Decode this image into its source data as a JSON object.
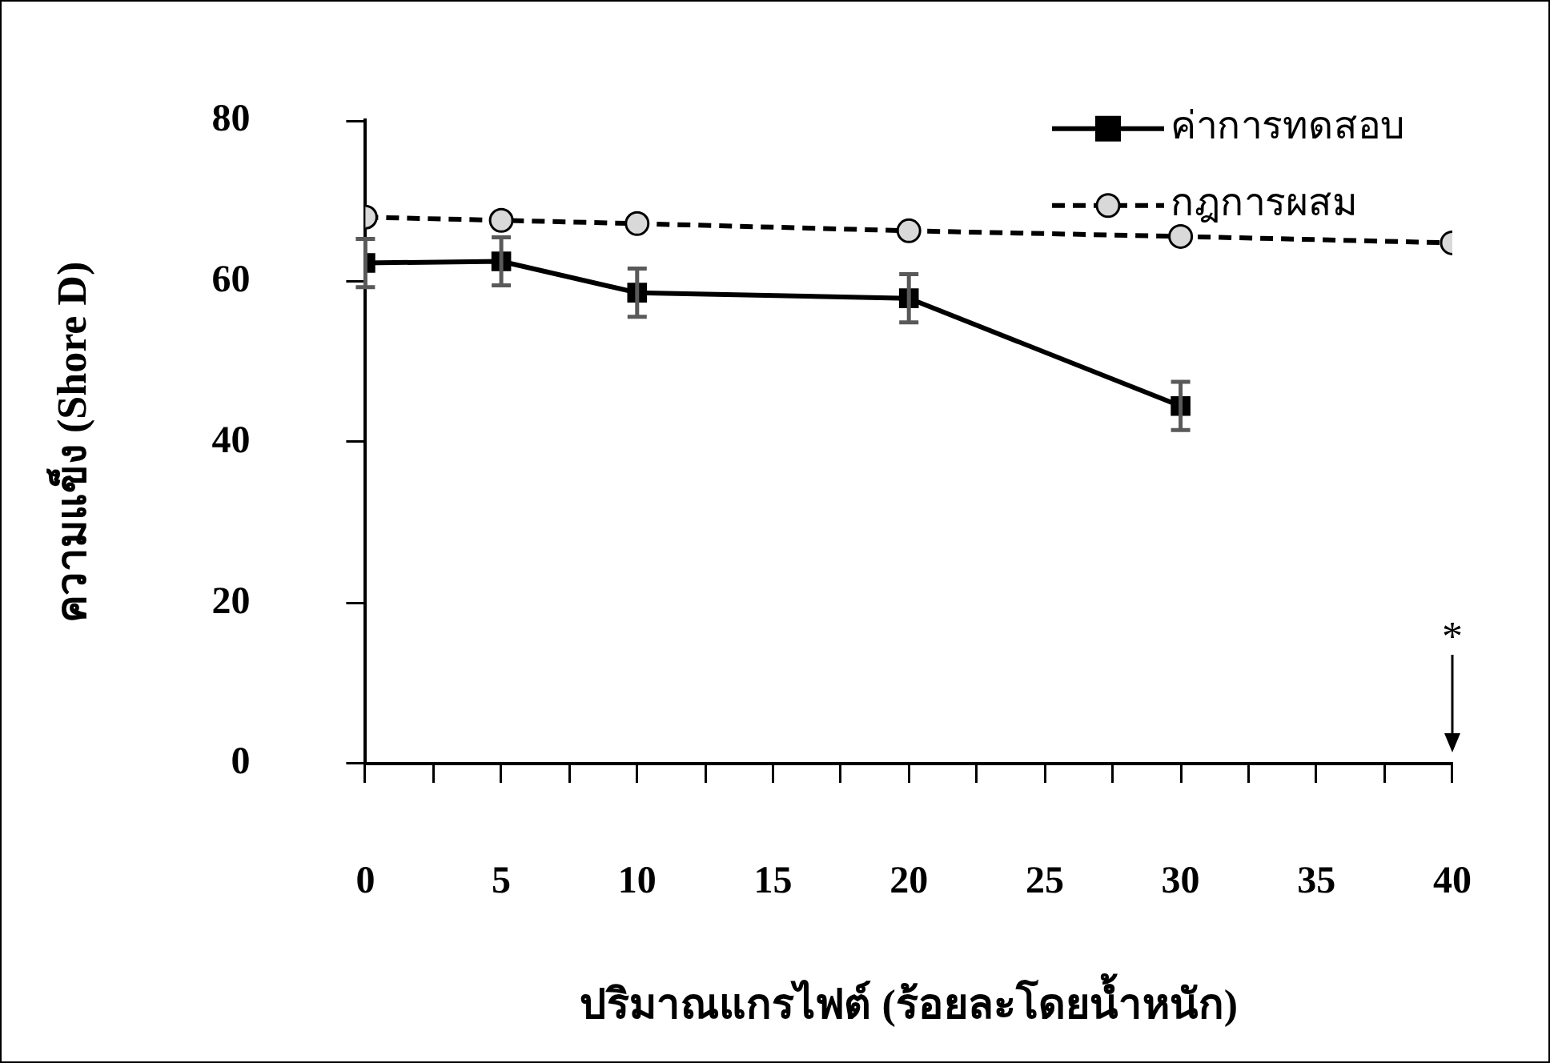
{
  "chart_data": {
    "type": "line",
    "xlabel": "ปริมาณแกรไฟต์ (ร้อยละโดยน้ำหนัก)",
    "ylabel": "ความแข็ง (Shore D)",
    "xlim": [
      0,
      40
    ],
    "xticks": [
      0,
      {
        "value": 2.5,
        "label": null
      },
      5,
      {
        "value": 7.5,
        "label": null
      },
      10,
      {
        "value": 12.5,
        "label": null
      },
      15,
      {
        "value": 17.5,
        "label": null
      },
      20,
      {
        "value": 22.5,
        "label": null
      },
      25,
      {
        "value": 27.5,
        "label": null
      },
      30,
      {
        "value": 32.5,
        "label": null
      },
      35,
      {
        "value": 37.5,
        "label": null
      },
      40
    ],
    "ylim": [
      0,
      80
    ],
    "yticks": [
      0,
      20,
      40,
      60,
      80
    ],
    "grid": false,
    "legend": "top right",
    "annotations": [
      "*"
    ],
    "series": [
      {
        "name": "ค่าการทดสอบ",
        "color": "#000000",
        "x": [
          0,
          5,
          10,
          20,
          30
        ],
        "values": [
          62.3,
          62.5,
          58.6,
          57.9,
          44.5
        ],
        "errors": [
          3,
          3,
          3,
          3,
          3
        ],
        "marker": "square",
        "line_style": "solid"
      },
      {
        "name": "กฎการผสม",
        "color": "#000000",
        "x": [
          0,
          5,
          10,
          20,
          30,
          40
        ],
        "values": [
          68.0,
          67.6,
          67.2,
          66.3,
          65.6,
          64.8
        ],
        "marker": "circle",
        "line_style": "dashed"
      }
    ]
  }
}
